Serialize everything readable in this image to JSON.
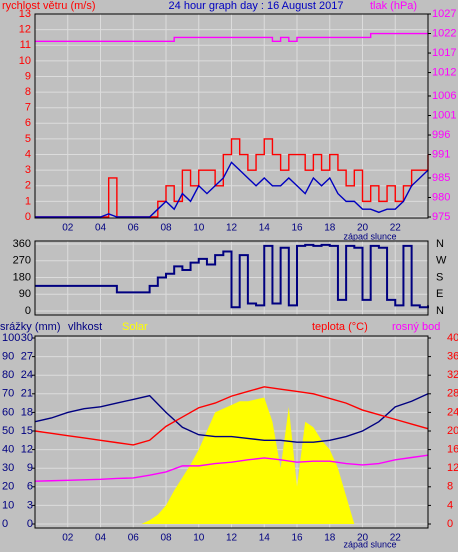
{
  "chart_data": [
    {
      "type": "line",
      "title": "24 hour graph day : 16 August 2017",
      "ylabel": "rychlost větru (m/s)",
      "y2label": "tlak (hPa)",
      "annotation": "západ slunce",
      "xlim": [
        0,
        24
      ],
      "xticks": [
        {
          "value": 2,
          "label": "02"
        },
        {
          "value": 4,
          "label": "04"
        },
        {
          "value": 6,
          "label": "06"
        },
        {
          "value": 8,
          "label": "08"
        },
        {
          "value": 10,
          "label": "10"
        },
        {
          "value": 12,
          "label": "12"
        },
        {
          "value": 14,
          "label": "14"
        },
        {
          "value": 16,
          "label": "16"
        },
        {
          "value": 18,
          "label": "18"
        },
        {
          "value": 20,
          "label": "20"
        },
        {
          "value": 22,
          "label": "22"
        }
      ],
      "ylim": [
        0,
        13
      ],
      "yticks": [
        0,
        1,
        2,
        3,
        4,
        5,
        6,
        7,
        8,
        9,
        10,
        11,
        12,
        13
      ],
      "y2lim": [
        975,
        1027
      ],
      "y2ticks": [
        975,
        980,
        985,
        991,
        996,
        1001,
        1006,
        1012,
        1017,
        1022,
        1027
      ],
      "ycolor": "#ff0000",
      "y2color": "#ff00ff",
      "titlecolor": "#0000c0",
      "grid": true,
      "x": [
        0,
        0.5,
        1,
        1.5,
        2,
        2.5,
        3,
        3.5,
        4,
        4.5,
        5,
        5.5,
        6,
        6.5,
        7,
        7.5,
        8,
        8.5,
        9,
        9.5,
        10,
        10.5,
        11,
        11.5,
        12,
        12.5,
        13,
        13.5,
        14,
        14.5,
        15,
        15.5,
        16,
        16.5,
        17,
        17.5,
        18,
        18.5,
        19,
        19.5,
        20,
        20.5,
        21,
        21.5,
        22,
        22.5,
        23,
        23.5,
        24
      ],
      "series": [
        {
          "color": "#ff0000",
          "style": "step",
          "values": [
            0,
            0,
            0,
            0,
            0,
            0,
            0,
            0,
            0,
            2.5,
            0,
            0,
            0,
            0,
            0,
            1,
            2,
            1,
            3,
            2,
            3,
            3,
            2,
            4,
            5,
            4,
            3,
            4,
            5,
            4,
            3,
            4,
            4,
            3,
            4,
            3,
            4,
            3,
            2,
            3,
            1,
            2,
            1,
            2,
            1,
            2,
            3,
            3,
            4
          ]
        },
        {
          "color": "#0000c0",
          "style": "line",
          "values": [
            0,
            0,
            0,
            0,
            0,
            0,
            0,
            0,
            0,
            0.2,
            0,
            0,
            0,
            0,
            0,
            0.5,
            1,
            0.5,
            1.5,
            1,
            2,
            1.5,
            2,
            2.5,
            3.5,
            3,
            2.5,
            2,
            2.5,
            2,
            2,
            2.5,
            2,
            1.5,
            2.5,
            2,
            2.5,
            1.5,
            1,
            1,
            0.5,
            0.5,
            0.3,
            0.5,
            0.5,
            1,
            2,
            2.5,
            3
          ]
        },
        {
          "color": "#ff00ff",
          "style": "step",
          "axis": "y2",
          "values": [
            1020,
            1020,
            1020,
            1020,
            1020,
            1020,
            1020,
            1020,
            1020,
            1020,
            1020,
            1020,
            1020,
            1020,
            1020,
            1020,
            1020,
            1021,
            1021,
            1021,
            1021,
            1021,
            1021,
            1021,
            1021,
            1021,
            1021,
            1021,
            1021,
            1020,
            1021,
            1020,
            1021,
            1021,
            1021,
            1021,
            1021,
            1021,
            1021,
            1021,
            1021,
            1022,
            1022,
            1022,
            1022,
            1022,
            1022,
            1022,
            1022
          ]
        }
      ]
    },
    {
      "type": "line",
      "xlim": [
        0,
        24
      ],
      "ylim": [
        0,
        360
      ],
      "yticks": [
        0,
        90,
        180,
        270,
        360
      ],
      "direction_labels": [
        "N",
        "E",
        "S",
        "W",
        "N"
      ],
      "grid": true,
      "x": [
        0,
        0.5,
        1,
        1.5,
        2,
        2.5,
        3,
        3.5,
        4,
        4.5,
        5,
        5.5,
        6,
        6.5,
        7,
        7.5,
        8,
        8.5,
        9,
        9.5,
        10,
        10.5,
        11,
        11.5,
        12,
        12.5,
        13,
        13.5,
        14,
        14.5,
        15,
        15.5,
        16,
        16.5,
        17,
        17.5,
        18,
        18.5,
        19,
        19.5,
        20,
        20.5,
        21,
        21.5,
        22,
        22.5,
        23,
        23.5,
        24
      ],
      "series": [
        {
          "color": "#000080",
          "style": "step",
          "values": [
            135,
            135,
            135,
            135,
            135,
            135,
            135,
            135,
            135,
            135,
            100,
            100,
            100,
            100,
            135,
            180,
            200,
            240,
            220,
            260,
            280,
            250,
            300,
            320,
            20,
            300,
            40,
            30,
            350,
            40,
            340,
            30,
            350,
            355,
            350,
            355,
            350,
            60,
            350,
            340,
            60,
            350,
            340,
            60,
            30,
            350,
            30,
            20,
            30
          ]
        }
      ]
    },
    {
      "type": "line",
      "ylabel": "srážky (mm)",
      "annotation": "západ slunce",
      "xlim": [
        0,
        24
      ],
      "xticks": [
        {
          "value": 2,
          "label": "02"
        },
        {
          "value": 4,
          "label": "04"
        },
        {
          "value": 6,
          "label": "06"
        },
        {
          "value": 8,
          "label": "08"
        },
        {
          "value": 10,
          "label": "10"
        },
        {
          "value": 12,
          "label": "12"
        },
        {
          "value": 14,
          "label": "14"
        },
        {
          "value": 16,
          "label": "16"
        },
        {
          "value": 18,
          "label": "18"
        },
        {
          "value": 20,
          "label": "20"
        },
        {
          "value": 22,
          "label": "22"
        }
      ],
      "ylim": [
        0,
        100
      ],
      "yticks": [
        0,
        10,
        20,
        30,
        40,
        50,
        60,
        70,
        80,
        90,
        100
      ],
      "rainlim": [
        0,
        30
      ],
      "rainticks": [
        0,
        3,
        6,
        9,
        12,
        15,
        18,
        21,
        24,
        27,
        30
      ],
      "y2lim": [
        0,
        40
      ],
      "y2ticks": [
        0,
        4,
        8,
        12,
        16,
        20,
        24,
        28,
        32,
        36,
        40
      ],
      "ycolor": "#000080",
      "y2color": "#ff0000",
      "grid": true,
      "x": [
        0,
        1,
        2,
        3,
        4,
        5,
        6,
        7,
        8,
        9,
        10,
        11,
        12,
        13,
        14,
        15,
        16,
        17,
        18,
        19,
        20,
        21,
        22,
        23,
        24
      ],
      "series": [
        {
          "name": "Solar",
          "color": "#ffff00",
          "style": "area",
          "x": [
            0,
            6.5,
            7,
            7.5,
            8,
            8.5,
            9,
            9.5,
            10,
            10.5,
            11,
            11.5,
            12,
            12.5,
            13,
            13.5,
            14,
            14.5,
            15,
            15.5,
            16,
            16.5,
            17,
            17.5,
            18,
            18.5,
            19,
            19.5,
            24
          ],
          "values": [
            0,
            0,
            2,
            5,
            10,
            18,
            25,
            32,
            40,
            50,
            60,
            62,
            64,
            66,
            66,
            67,
            68,
            55,
            30,
            63,
            20,
            55,
            52,
            45,
            40,
            30,
            15,
            0,
            0
          ]
        },
        {
          "name": "vlhkost",
          "color": "#000080",
          "style": "line",
          "values": [
            55,
            57,
            60,
            62,
            63,
            65,
            67,
            69,
            60,
            52,
            48,
            47,
            47,
            46,
            45,
            45,
            44,
            44,
            45,
            47,
            50,
            55,
            63,
            66,
            70
          ]
        },
        {
          "name": "teplota (°C)",
          "color": "#ff0000",
          "style": "line",
          "axis": "y2",
          "values": [
            20,
            19.5,
            19,
            18.5,
            18,
            17.5,
            17,
            18,
            21,
            23,
            25,
            26,
            27.5,
            28.5,
            29.5,
            29,
            28.5,
            28,
            27,
            26,
            24.5,
            23.5,
            22.5,
            21.5,
            20.5
          ]
        },
        {
          "name": "rosný bod",
          "color": "#ff00ff",
          "style": "line",
          "axis": "y2",
          "values": [
            9.2,
            9.3,
            9.4,
            9.5,
            9.6,
            9.8,
            9.9,
            10.5,
            11.2,
            12.5,
            12.5,
            13,
            13.3,
            13.8,
            14.2,
            13.8,
            13.3,
            13.5,
            13.5,
            13,
            12.7,
            13,
            13.8,
            14.3,
            14.8
          ]
        }
      ]
    }
  ]
}
